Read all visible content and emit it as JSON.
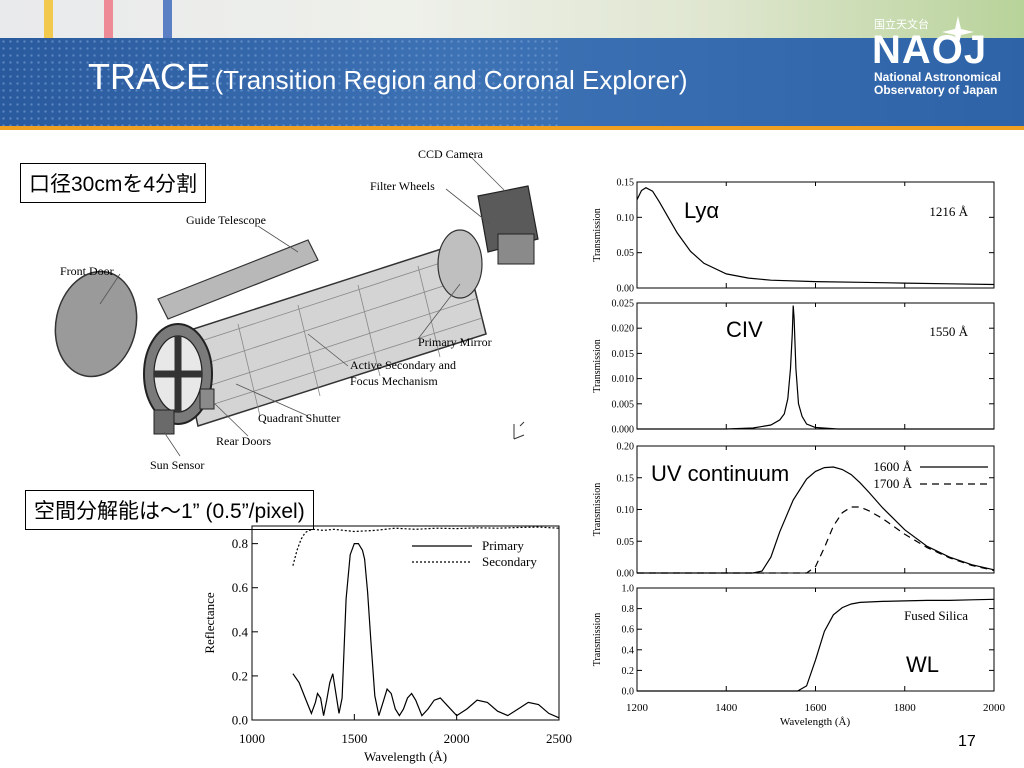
{
  "slide": {
    "title_main": "TRACE",
    "title_sub": "(Transition Region and Coronal Explorer)",
    "page_number": "17",
    "accent_colors": {
      "blue": "#2f63a8",
      "orange": "#f0a020",
      "stripe_yellow": "#f2c94c",
      "stripe_pink": "#ee8a95",
      "stripe_blue": "#5b7fc4"
    }
  },
  "logo": {
    "kanji": "国立天文台",
    "main": "NAOJ",
    "line1": "National Astronomical",
    "line2": "Observatory of Japan"
  },
  "callouts": {
    "aperture": "口径30cmを4分割",
    "resolution": "空間分解能は～1” (0.5”/pixel)"
  },
  "diagram": {
    "labels": {
      "ccd": "CCD Camera",
      "filter": "Filter Wheels",
      "guide": "Guide Telescope",
      "front_door": "Front Door",
      "primary_mirror": "Primary Mirror",
      "secondary1": "Active Secondary and",
      "secondary2": "Focus Mechanism",
      "quadrant": "Quadrant Shutter",
      "rear": "Rear Doors",
      "sun": "Sun Sensor"
    }
  },
  "chart_data": [
    {
      "type": "line",
      "panel": "Lyα",
      "annotation": "Lyα",
      "wavelength_label": "1216 Å",
      "ylabel": "Transmission",
      "xlim": [
        1200,
        2000
      ],
      "ylim": [
        0,
        0.15
      ],
      "y_ticks": [
        "0.00",
        "0.05",
        "0.10",
        "0.15"
      ],
      "series": [
        {
          "x": [
            1200,
            1210,
            1220,
            1235,
            1250,
            1270,
            1290,
            1320,
            1350,
            1400,
            1450,
            1500,
            1600,
            1700,
            1800,
            1900,
            2000
          ],
          "y": [
            0.125,
            0.138,
            0.142,
            0.137,
            0.122,
            0.1,
            0.078,
            0.052,
            0.035,
            0.02,
            0.014,
            0.011,
            0.009,
            0.008,
            0.007,
            0.006,
            0.005
          ]
        }
      ]
    },
    {
      "type": "line",
      "panel": "CIV",
      "annotation": "CIV",
      "wavelength_label": "1550 Å",
      "ylabel": "Transmission",
      "xlim": [
        1200,
        2000
      ],
      "ylim": [
        0,
        0.025
      ],
      "y_ticks": [
        "0.000",
        "0.005",
        "0.010",
        "0.015",
        "0.020",
        "0.025"
      ],
      "series": [
        {
          "x": [
            1200,
            1300,
            1400,
            1460,
            1500,
            1520,
            1530,
            1538,
            1544,
            1548,
            1550,
            1552,
            1556,
            1562,
            1570,
            1580,
            1600,
            1650,
            1700,
            2000
          ],
          "y": [
            0.0,
            0.0,
            0.0,
            0.0002,
            0.0008,
            0.0018,
            0.003,
            0.006,
            0.012,
            0.019,
            0.0245,
            0.022,
            0.012,
            0.005,
            0.0025,
            0.001,
            0.0003,
            0.0,
            0.0,
            0.0
          ]
        }
      ]
    },
    {
      "type": "line",
      "panel": "UV continuum",
      "annotation": "UV continuum",
      "ylabel": "Transmission",
      "xlim": [
        1200,
        2000
      ],
      "ylim": [
        0,
        0.2
      ],
      "y_ticks": [
        "0.00",
        "0.05",
        "0.10",
        "0.15",
        "0.20"
      ],
      "series": [
        {
          "name": "1600 Å",
          "style": "solid",
          "x": [
            1200,
            1400,
            1460,
            1480,
            1500,
            1520,
            1550,
            1580,
            1600,
            1620,
            1640,
            1660,
            1680,
            1700,
            1720,
            1750,
            1800,
            1850,
            1900,
            1950,
            2000
          ],
          "y": [
            0,
            0,
            0,
            0.003,
            0.025,
            0.065,
            0.115,
            0.148,
            0.16,
            0.166,
            0.167,
            0.163,
            0.155,
            0.142,
            0.127,
            0.103,
            0.068,
            0.042,
            0.025,
            0.013,
            0.005
          ]
        },
        {
          "name": "1700 Å",
          "style": "dashed",
          "x": [
            1200,
            1580,
            1600,
            1620,
            1640,
            1660,
            1680,
            1700,
            1720,
            1750,
            1800,
            1850,
            1900,
            1950,
            2000
          ],
          "y": [
            0,
            0,
            0.01,
            0.04,
            0.074,
            0.095,
            0.104,
            0.104,
            0.098,
            0.086,
            0.061,
            0.04,
            0.024,
            0.012,
            0.004
          ]
        }
      ]
    },
    {
      "type": "line",
      "panel": "WL",
      "annotation": "WL",
      "series_label": "Fused Silica",
      "ylabel": "Transmission",
      "xlabel": "Wavelength (Å)",
      "xlim": [
        1200,
        2000
      ],
      "ylim": [
        0,
        1.0
      ],
      "x_ticks": [
        "1200",
        "1400",
        "1600",
        "1800",
        "2000"
      ],
      "y_ticks": [
        "0.0",
        "0.2",
        "0.4",
        "0.6",
        "0.8",
        "1.0"
      ],
      "series": [
        {
          "x": [
            1200,
            1560,
            1580,
            1600,
            1620,
            1640,
            1660,
            1680,
            1700,
            1750,
            1800,
            1850,
            1900,
            1950,
            2000
          ],
          "y": [
            0,
            0,
            0.05,
            0.3,
            0.58,
            0.74,
            0.81,
            0.845,
            0.86,
            0.87,
            0.875,
            0.88,
            0.88,
            0.885,
            0.89
          ]
        }
      ]
    },
    {
      "type": "line",
      "panel": "Reflectance",
      "ylabel": "Reflectance",
      "xlabel": "Wavelength (Å)",
      "xlim": [
        1000,
        2500
      ],
      "ylim": [
        0,
        0.88
      ],
      "x_ticks": [
        "1000",
        "1500",
        "2000",
        "2500"
      ],
      "y_ticks": [
        "0.0",
        "0.2",
        "0.4",
        "0.6",
        "0.8"
      ],
      "series": [
        {
          "name": "Primary",
          "style": "solid",
          "x": [
            1200,
            1230,
            1260,
            1290,
            1310,
            1320,
            1335,
            1350,
            1365,
            1380,
            1395,
            1410,
            1425,
            1440,
            1460,
            1480,
            1500,
            1520,
            1540,
            1550,
            1565,
            1580,
            1600,
            1620,
            1640,
            1660,
            1680,
            1700,
            1720,
            1740,
            1760,
            1780,
            1800,
            1830,
            1860,
            1890,
            1920,
            1960,
            2000,
            2050,
            2100,
            2150,
            2200,
            2250,
            2300,
            2350,
            2400,
            2450,
            2500
          ],
          "y": [
            0.21,
            0.17,
            0.1,
            0.03,
            0.08,
            0.12,
            0.1,
            0.02,
            0.09,
            0.17,
            0.21,
            0.12,
            0.03,
            0.1,
            0.55,
            0.75,
            0.8,
            0.8,
            0.77,
            0.73,
            0.58,
            0.37,
            0.11,
            0.02,
            0.08,
            0.14,
            0.12,
            0.05,
            0.02,
            0.05,
            0.1,
            0.12,
            0.09,
            0.02,
            0.05,
            0.09,
            0.1,
            0.06,
            0.02,
            0.05,
            0.09,
            0.08,
            0.04,
            0.02,
            0.05,
            0.08,
            0.07,
            0.03,
            0.01
          ]
        },
        {
          "name": "Secondary",
          "style": "dotted",
          "x": [
            1200,
            1220,
            1240,
            1260,
            1280,
            1300,
            1350,
            1400,
            1500,
            1600,
            1700,
            1800,
            1900,
            2000,
            2100,
            2200,
            2300,
            2400,
            2500
          ],
          "y": [
            0.7,
            0.77,
            0.82,
            0.85,
            0.86,
            0.865,
            0.86,
            0.865,
            0.855,
            0.86,
            0.87,
            0.865,
            0.87,
            0.868,
            0.872,
            0.87,
            0.873,
            0.875,
            0.87
          ]
        }
      ]
    }
  ]
}
